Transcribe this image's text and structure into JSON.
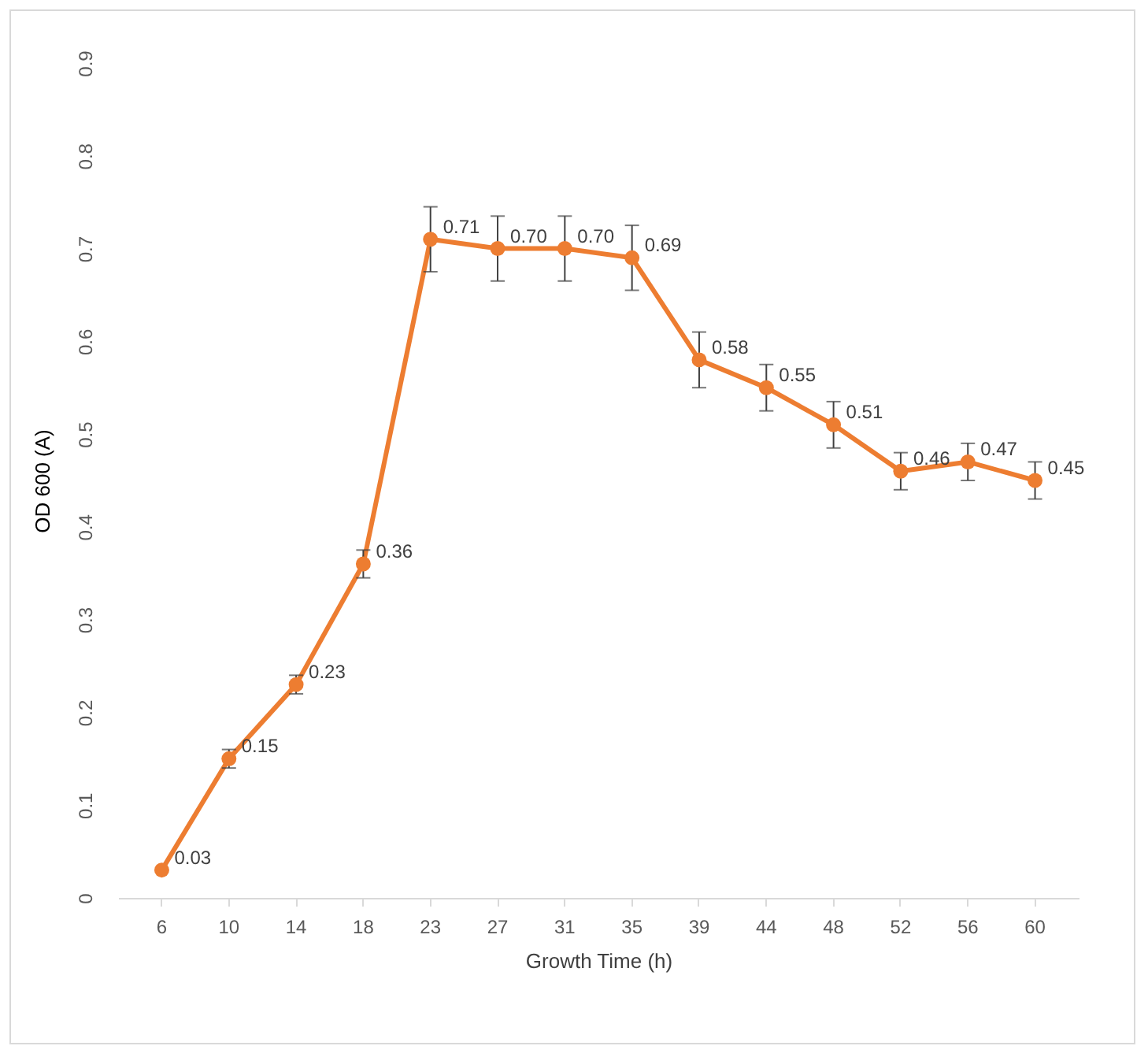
{
  "chart_data": {
    "type": "line",
    "xlabel": "Growth Time (h)",
    "ylabel": "OD 600 (A)",
    "categories": [
      "6",
      "10",
      "14",
      "18",
      "23",
      "27",
      "31",
      "35",
      "39",
      "44",
      "48",
      "52",
      "56",
      "60"
    ],
    "series": [
      {
        "color": "#ed7d31",
        "values": [
          0.03,
          0.15,
          0.23,
          0.36,
          0.71,
          0.7,
          0.7,
          0.69,
          0.58,
          0.55,
          0.51,
          0.46,
          0.47,
          0.45
        ],
        "errors": [
          null,
          0.01,
          0.01,
          0.015,
          0.035,
          0.035,
          0.035,
          0.035,
          0.03,
          0.025,
          0.025,
          0.02,
          0.02,
          0.02
        ],
        "value_labels": [
          "0.03",
          "0.15",
          "0.23",
          "0.36",
          "0.71",
          "0.70",
          "0.70",
          "0.69",
          "0.58",
          "0.55",
          "0.51",
          "0.46",
          "0.47",
          "0.45"
        ]
      }
    ],
    "ylim": [
      0,
      0.9
    ],
    "yticks": [
      0,
      0.1,
      0.2,
      0.3,
      0.4,
      0.5,
      0.6,
      0.7,
      0.8,
      0.9
    ],
    "marker": "circle",
    "line_style": "solid"
  }
}
